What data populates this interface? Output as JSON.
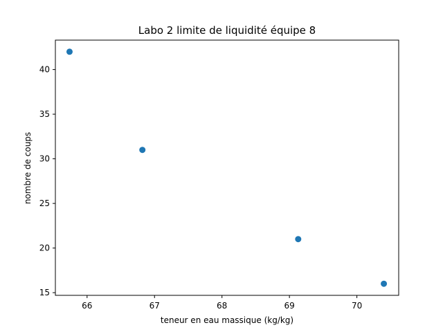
{
  "chart_data": {
    "type": "scatter",
    "title": "Labo 2 limite de liquidité équipe 8",
    "xlabel": "teneur en eau massique (kg/kg)",
    "ylabel": "nombre de coups",
    "xlim": [
      65.53,
      70.62
    ],
    "ylim": [
      14.7,
      43.3
    ],
    "xticks": [
      66,
      67,
      68,
      69,
      70
    ],
    "yticks": [
      15,
      20,
      25,
      30,
      35,
      40
    ],
    "grid": false,
    "series": [
      {
        "color": "#1f77b4",
        "points": [
          {
            "x": 65.74,
            "y": 42
          },
          {
            "x": 66.82,
            "y": 31
          },
          {
            "x": 69.13,
            "y": 21
          },
          {
            "x": 70.4,
            "y": 16
          }
        ]
      }
    ]
  }
}
